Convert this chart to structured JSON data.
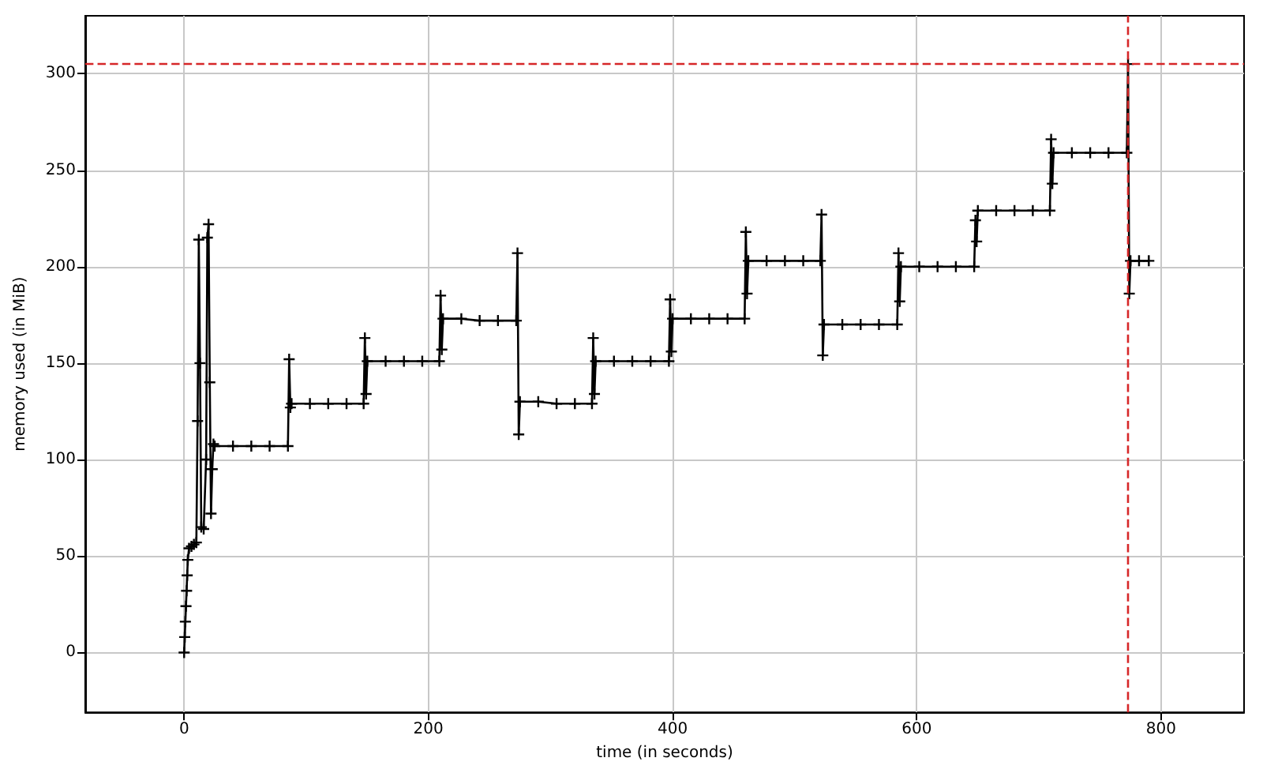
{
  "chart_data": {
    "type": "line",
    "xlabel": "time (in seconds)",
    "ylabel": "memory used (in MiB)",
    "x": [
      0,
      0.5,
      1,
      1.5,
      2,
      2.5,
      3,
      4,
      6,
      8,
      10,
      11,
      12,
      13,
      14,
      16,
      18,
      19,
      20,
      21,
      22,
      23,
      24,
      25,
      40,
      55,
      70,
      85,
      86,
      87,
      88,
      103,
      118,
      133,
      147,
      148,
      149,
      150,
      165,
      180,
      195,
      209,
      210,
      211,
      212,
      227,
      242,
      257,
      272,
      273,
      274,
      275,
      290,
      305,
      320,
      334,
      335,
      336,
      337,
      352,
      367,
      382,
      397,
      398,
      399,
      400,
      415,
      430,
      445,
      459,
      460,
      461,
      462,
      477,
      492,
      507,
      521,
      522,
      523,
      524,
      539,
      554,
      569,
      584,
      585,
      586,
      587,
      602,
      617,
      632,
      647,
      648,
      649,
      650,
      665,
      680,
      695,
      709,
      710,
      711,
      712,
      727,
      742,
      757,
      772,
      773,
      774,
      775,
      782,
      790
    ],
    "series": [
      {
        "color": "#000000",
        "values": [
          0,
          8,
          16,
          24,
          32,
          40,
          48,
          54,
          55,
          56,
          57,
          120,
          214,
          150,
          65,
          64,
          100,
          215,
          222,
          140,
          72,
          95,
          108,
          107,
          107,
          107,
          107,
          107,
          152,
          127,
          129,
          129,
          129,
          129,
          129,
          163,
          134,
          151,
          151,
          151,
          151,
          151,
          185,
          157,
          173,
          173,
          172,
          172,
          172,
          207,
          113,
          130,
          130,
          129,
          129,
          129,
          163,
          134,
          151,
          151,
          151,
          151,
          151,
          183,
          156,
          173,
          173,
          173,
          173,
          173,
          218,
          186,
          203,
          203,
          203,
          203,
          203,
          227,
          154,
          170,
          170,
          170,
          170,
          170,
          207,
          182,
          200,
          200,
          200,
          200,
          200,
          224,
          213,
          229,
          229,
          229,
          229,
          229,
          266,
          243,
          259,
          259,
          259,
          259,
          259,
          305,
          186,
          203,
          203,
          203
        ]
      }
    ],
    "xlim": [
      -81,
      868
    ],
    "xticks": [
      0,
      200,
      400,
      600,
      800
    ],
    "ylim": [
      -31,
      330
    ],
    "yticks": [
      0,
      50,
      100,
      150,
      200,
      250,
      300
    ],
    "ref_lines": [
      {
        "axis": "y",
        "value": 305,
        "color": "#d62728",
        "line_style": "dashed"
      },
      {
        "axis": "x",
        "value": 773,
        "color": "#d62728",
        "line_style": "dashed"
      }
    ],
    "grid": true,
    "marker": "cross",
    "line_style": "solid"
  }
}
